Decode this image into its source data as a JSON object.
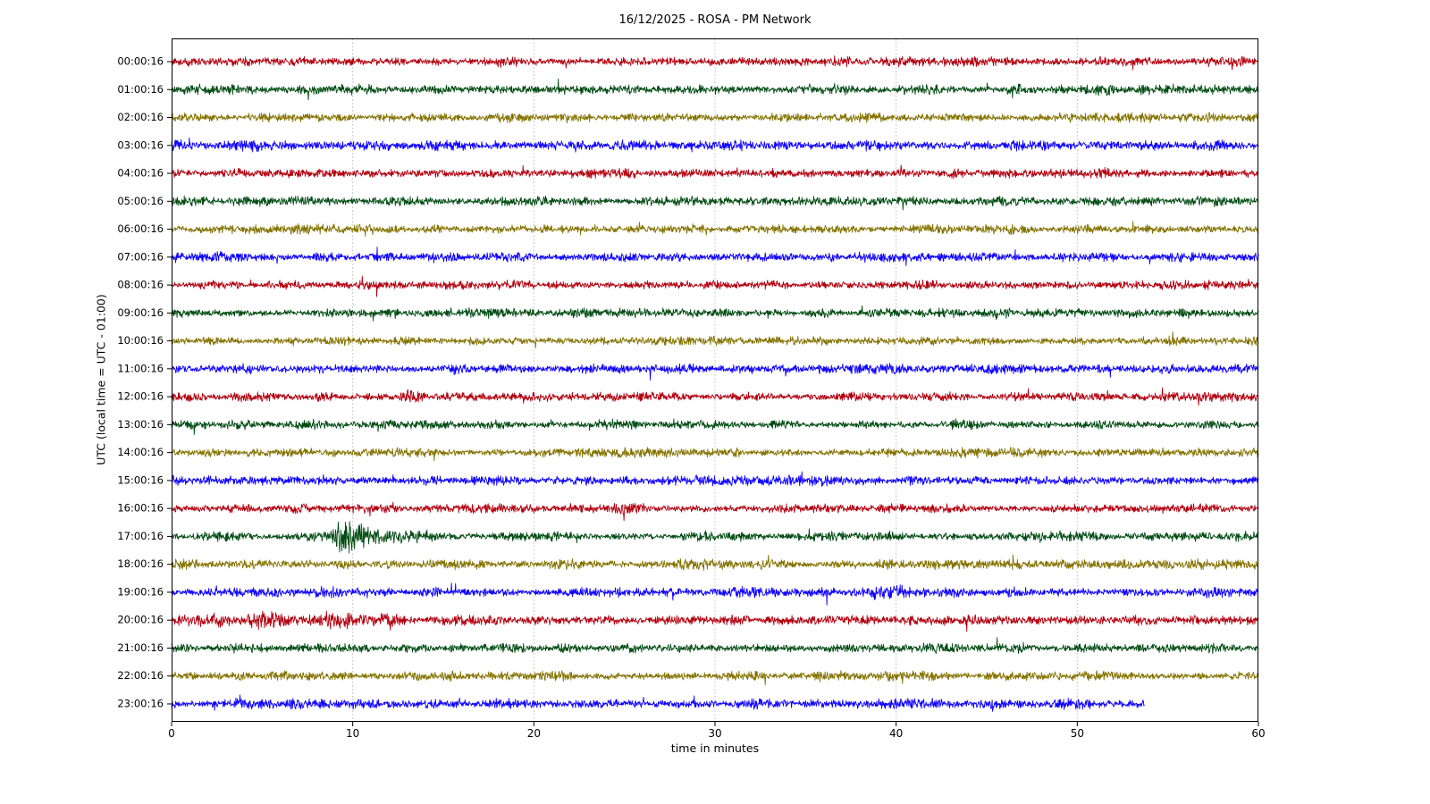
{
  "chart_data": {
    "type": "line",
    "subtype": "seismogram-dayplot-helicorder",
    "title": "16/12/2025 - ROSA - PM Network",
    "xlabel": "time in minutes",
    "ylabel": "UTC (local time = UTC - 01:00)",
    "x_range": [
      0,
      60
    ],
    "x_ticks": [
      0,
      10,
      20,
      30,
      40,
      50,
      60
    ],
    "grid_vertical_dotted_at_minutes": [
      10,
      20,
      30,
      40,
      50
    ],
    "grid_color": "#999999",
    "axis_color": "#000000",
    "background_color": "#ffffff",
    "color_cycle": [
      "#B2000F",
      "#004C12",
      "#847200",
      "#0E01FF"
    ],
    "rows": [
      {
        "label": "00:00:16",
        "color": "#B2000F",
        "duration_min": 60,
        "amplitude": 1.0,
        "events": []
      },
      {
        "label": "01:00:16",
        "color": "#004C12",
        "duration_min": 60,
        "amplitude": 1.0,
        "events": [
          {
            "start_min": 50.6,
            "end_min": 51.6,
            "peak": 1.45
          }
        ]
      },
      {
        "label": "02:00:16",
        "color": "#847200",
        "duration_min": 60,
        "amplitude": 0.95,
        "events": []
      },
      {
        "label": "03:00:16",
        "color": "#0E01FF",
        "duration_min": 60,
        "amplitude": 1.1,
        "events": []
      },
      {
        "label": "04:00:16",
        "color": "#B2000F",
        "duration_min": 60,
        "amplitude": 1.0,
        "events": []
      },
      {
        "label": "05:00:16",
        "color": "#004C12",
        "duration_min": 60,
        "amplitude": 1.0,
        "events": []
      },
      {
        "label": "06:00:16",
        "color": "#847200",
        "duration_min": 60,
        "amplitude": 0.95,
        "events": []
      },
      {
        "label": "07:00:16",
        "color": "#0E01FF",
        "duration_min": 60,
        "amplitude": 1.0,
        "events": []
      },
      {
        "label": "08:00:16",
        "color": "#B2000F",
        "duration_min": 60,
        "amplitude": 0.95,
        "events": []
      },
      {
        "label": "09:00:16",
        "color": "#004C12",
        "duration_min": 60,
        "amplitude": 1.0,
        "events": [
          {
            "start_min": 44.5,
            "end_min": 46.0,
            "peak": 1.4
          }
        ]
      },
      {
        "label": "10:00:16",
        "color": "#847200",
        "duration_min": 60,
        "amplitude": 0.95,
        "events": []
      },
      {
        "label": "11:00:16",
        "color": "#0E01FF",
        "duration_min": 60,
        "amplitude": 1.0,
        "events": []
      },
      {
        "label": "12:00:16",
        "color": "#B2000F",
        "duration_min": 60,
        "amplitude": 0.95,
        "events": [
          {
            "start_min": 12.7,
            "end_min": 13.3,
            "peak": 1.7
          }
        ]
      },
      {
        "label": "13:00:16",
        "color": "#004C12",
        "duration_min": 60,
        "amplitude": 1.0,
        "events": []
      },
      {
        "label": "14:00:16",
        "color": "#847200",
        "duration_min": 60,
        "amplitude": 0.95,
        "events": []
      },
      {
        "label": "15:00:16",
        "color": "#0E01FF",
        "duration_min": 60,
        "amplitude": 1.05,
        "events": []
      },
      {
        "label": "16:00:16",
        "color": "#B2000F",
        "duration_min": 60,
        "amplitude": 0.95,
        "events": [
          {
            "start_min": 24.6,
            "end_min": 25.7,
            "peak": 1.55
          }
        ]
      },
      {
        "label": "17:00:16",
        "color": "#004C12",
        "duration_min": 60,
        "amplitude": 1.0,
        "events": [
          {
            "start_min": 9.1,
            "end_min": 10.3,
            "peak": 3.0
          },
          {
            "start_min": 10.3,
            "end_min": 14.2,
            "peak": 1.9
          },
          {
            "start_min": 29.6,
            "end_min": 31.4,
            "peak": 1.8
          }
        ]
      },
      {
        "label": "18:00:16",
        "color": "#847200",
        "duration_min": 60,
        "amplitude": 1.0,
        "events": [
          {
            "start_min": 27.9,
            "end_min": 30.3,
            "peak": 1.35
          }
        ]
      },
      {
        "label": "19:00:16",
        "color": "#0E01FF",
        "duration_min": 60,
        "amplitude": 1.05,
        "events": [
          {
            "start_min": 38.7,
            "end_min": 40.1,
            "peak": 1.45
          }
        ]
      },
      {
        "label": "20:00:16",
        "color": "#B2000F",
        "duration_min": 60,
        "amplitude": 1.1,
        "events": [
          {
            "start_min": 0.4,
            "end_min": 6.0,
            "peak": 1.5
          },
          {
            "start_min": 8.6,
            "end_min": 12.4,
            "peak": 1.55
          }
        ]
      },
      {
        "label": "21:00:16",
        "color": "#004C12",
        "duration_min": 60,
        "amplitude": 1.0,
        "events": []
      },
      {
        "label": "22:00:16",
        "color": "#847200",
        "duration_min": 60,
        "amplitude": 1.0,
        "events": []
      },
      {
        "label": "23:00:16",
        "color": "#0E01FF",
        "duration_min": 53.7,
        "amplitude": 1.1,
        "events": []
      }
    ]
  }
}
